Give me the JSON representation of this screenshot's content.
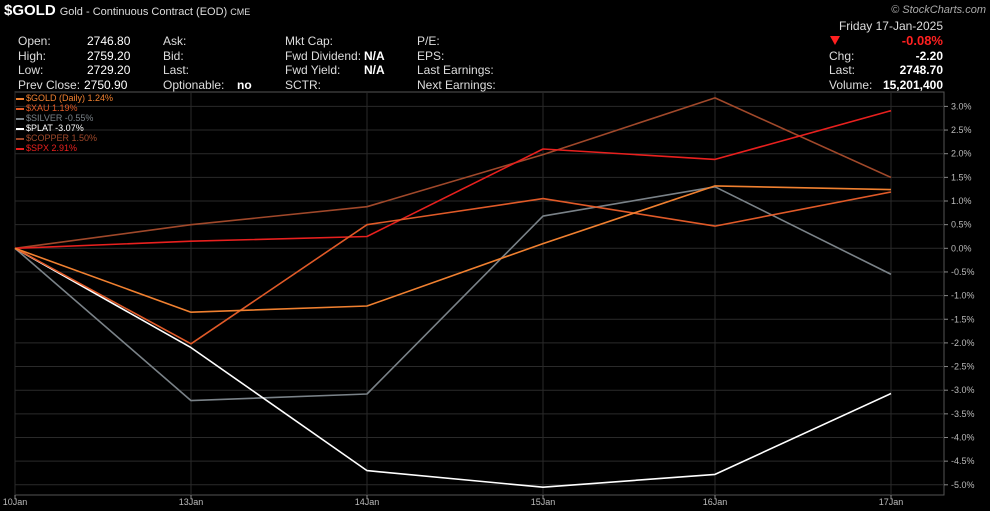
{
  "header": {
    "symbol": "$GOLD",
    "description": "Gold - Continuous Contract (EOD)",
    "exchange": "CME",
    "logo": "© StockCharts.com",
    "date": "Friday  17-Jan-2025",
    "change_pct": "-0.08%",
    "quotes": {
      "open_label": "Open:",
      "open": "2746.80",
      "high_label": "High:",
      "high": "2759.20",
      "low_label": "Low:",
      "low": "2729.20",
      "prev_label": "Prev Close:",
      "prev": "2750.90",
      "ask_label": "Ask:",
      "bid_label": "Bid:",
      "last_label": "Last:",
      "optionable_label": "Optionable:",
      "optionable": "no",
      "mktcap_label": "Mkt Cap:",
      "fwddiv_label": "Fwd Dividend:",
      "fwddiv": "N/A",
      "fwdyield_label": "Fwd Yield:",
      "fwdyield": "N/A",
      "sctr_label": "SCTR:",
      "pe_label": "P/E:",
      "eps_label": "EPS:",
      "lastearn_label": "Last Earnings:",
      "nextearn_label": "Next Earnings:",
      "chg_label": "Chg:",
      "chg": "-2.20",
      "lastpx_label": "Last:",
      "lastpx": "2748.70",
      "vol_label": "Volume:",
      "vol": "15,201,400"
    }
  },
  "chart_data": {
    "type": "line",
    "x": [
      "10Jan",
      "13Jan",
      "14Jan",
      "15Jan",
      "16Jan",
      "17Jan"
    ],
    "yticks": [
      "3.0%",
      "2.5%",
      "2.0%",
      "1.5%",
      "1.0%",
      "0.5%",
      "0.0%",
      "-0.5%",
      "-1.0%",
      "-1.5%",
      "-2.0%",
      "-2.5%",
      "-3.0%",
      "-3.5%",
      "-4.0%",
      "-4.5%",
      "-5.0%"
    ],
    "ylim": [
      -5.2,
      3.3
    ],
    "grid": true,
    "legend": "top-left",
    "series": [
      {
        "name": "$GOLD (Daily) 1.24%",
        "color": "#f08030",
        "values": [
          0,
          -1.35,
          -1.22,
          0.1,
          1.32,
          1.24
        ]
      },
      {
        "name": "$XAU 1.19%",
        "color": "#e05a28",
        "values": [
          0,
          -2.02,
          0.5,
          1.05,
          0.47,
          1.19
        ]
      },
      {
        "name": "$SILVER -0.55%",
        "color": "#7a8288",
        "values": [
          0,
          -3.22,
          -3.08,
          0.68,
          1.3,
          -0.55
        ]
      },
      {
        "name": "$PLAT -3.07%",
        "color": "#ffffff",
        "values": [
          0,
          -2.1,
          -4.7,
          -5.05,
          -4.78,
          -3.07
        ]
      },
      {
        "name": "$COPPER 1.50%",
        "color": "#a0482a",
        "values": [
          0,
          0.5,
          0.88,
          1.98,
          3.18,
          1.5
        ]
      },
      {
        "name": "$SPX 2.91%",
        "color": "#e8201e",
        "values": [
          0,
          0.15,
          0.25,
          2.1,
          1.88,
          2.91
        ]
      }
    ]
  }
}
